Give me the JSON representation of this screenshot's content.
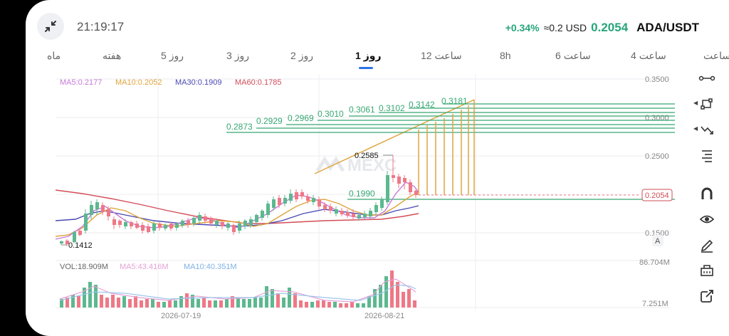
{
  "header": {
    "time": "21:19:17",
    "change_pct": "+0.34%",
    "approx_usd": "≈0.2 USD",
    "last_price": "0.2054",
    "pair": "ADA/USDT"
  },
  "tabs": [
    {
      "label": "ساعت",
      "active": false
    },
    {
      "label": "4 ساعت",
      "active": false
    },
    {
      "label": "6 ساعت",
      "active": false
    },
    {
      "label": "8h",
      "active": false
    },
    {
      "label": "12 ساعت",
      "active": false
    },
    {
      "label": "1 روز",
      "active": true
    },
    {
      "label": "2 روز",
      "active": false
    },
    {
      "label": "3 روز",
      "active": false
    },
    {
      "label": "5 روز",
      "active": false
    },
    {
      "label": "هفته",
      "active": false
    },
    {
      "label": "ماه",
      "active": false
    }
  ],
  "indicators": {
    "ma5": "MA5:0.2177",
    "ma10": "MA10:0.2052",
    "ma30": "MA30:0.1909",
    "ma60": "MA60:0.1785",
    "vol": "VOL:18.909M",
    "vol_ma5": "MA5:43.416M",
    "vol_ma10": "MA10:40.351M"
  },
  "y_axis": [
    "0.3500",
    "0.3000",
    "0.2500",
    "0.1500"
  ],
  "vol_axis": [
    "86.704M",
    "7.251M"
  ],
  "x_axis": [
    "2026-07-19",
    "2026-08-21"
  ],
  "annotations": {
    "low": "0.1412",
    "high": "0.2585",
    "fib_base": "0.1990",
    "current_price_tag": "0.2054",
    "auto_scale": "A",
    "fib_levels": [
      "0.2873",
      "0.2929",
      "0.2969",
      "0.3010",
      "0.3061",
      "0.3102",
      "0.3142",
      "0.3181"
    ]
  },
  "watermark": "MEXC",
  "colors": {
    "up": "#5cb88f",
    "down": "#ef7886",
    "ma5": "#c77ad8",
    "ma10": "#e0a43c",
    "ma30": "#4a49b5",
    "ma60": "#d24d57",
    "fib": "#36a872"
  },
  "tools": [
    {
      "name": "horizontal-line-tool-icon"
    },
    {
      "name": "path-tool-icon"
    },
    {
      "name": "trend-tool-icon"
    },
    {
      "name": "fibonacci-tool-icon"
    },
    {
      "name": "magnet-icon"
    },
    {
      "name": "eye-icon"
    },
    {
      "name": "pencil-icon"
    },
    {
      "name": "ruler-icon"
    },
    {
      "name": "share-icon"
    }
  ]
}
